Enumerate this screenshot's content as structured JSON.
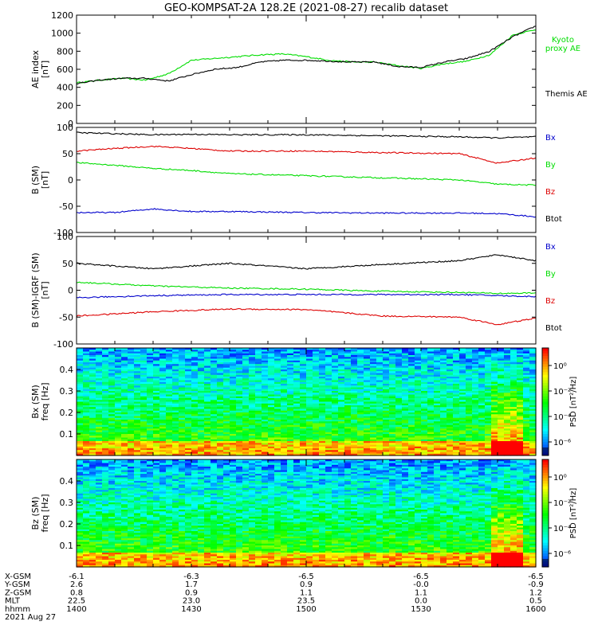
{
  "title": "GEO-KOMPSAT-2A 128.2E (2021-08-27) recalib dataset",
  "colors": {
    "green": "#00dd00",
    "black": "#000000",
    "blue": "#0000cc",
    "red": "#dd0000",
    "bg": "#ffffff"
  },
  "chart_data": [
    {
      "type": "line",
      "panel": "ae",
      "ylabel_top": "AE index",
      "ylabel_unit": "[nT]",
      "ylim": [
        0,
        1200
      ],
      "yticks": [
        "0",
        "200",
        "400",
        "600",
        "800",
        "1000",
        "1200"
      ],
      "x": [
        0,
        60
      ],
      "series": [
        {
          "name": "Kyoto proxy AE",
          "legend_lines": [
            "Kyoto",
            "proxy AE"
          ],
          "color": "green",
          "points": [
            [
              0,
              450
            ],
            [
              3,
              480
            ],
            [
              6,
              500
            ],
            [
              9,
              480
            ],
            [
              12,
              550
            ],
            [
              15,
              700
            ],
            [
              18,
              720
            ],
            [
              21,
              740
            ],
            [
              24,
              760
            ],
            [
              27,
              770
            ],
            [
              30,
              740
            ],
            [
              33,
              700
            ],
            [
              36,
              680
            ],
            [
              39,
              680
            ],
            [
              42,
              640
            ],
            [
              45,
              610
            ],
            [
              48,
              660
            ],
            [
              51,
              690
            ],
            [
              54,
              760
            ],
            [
              57,
              980
            ],
            [
              60,
              1040
            ]
          ]
        },
        {
          "name": "Themis AE",
          "legend_lines": [
            "Themis AE"
          ],
          "color": "black",
          "points": [
            [
              0,
              440
            ],
            [
              3,
              480
            ],
            [
              6,
              500
            ],
            [
              9,
              500
            ],
            [
              12,
              470
            ],
            [
              15,
              540
            ],
            [
              18,
              600
            ],
            [
              21,
              620
            ],
            [
              24,
              680
            ],
            [
              27,
              700
            ],
            [
              30,
              700
            ],
            [
              33,
              690
            ],
            [
              36,
              680
            ],
            [
              39,
              680
            ],
            [
              42,
              630
            ],
            [
              45,
              620
            ],
            [
              48,
              680
            ],
            [
              51,
              720
            ],
            [
              54,
              800
            ],
            [
              57,
              960
            ],
            [
              60,
              1080
            ]
          ]
        }
      ]
    },
    {
      "type": "line",
      "panel": "b",
      "ylabel_top": "B (SM)",
      "ylabel_unit": "[nT]",
      "ylim": [
        -100,
        100
      ],
      "yticks": [
        "-100",
        "-50",
        "0",
        "50",
        "100"
      ],
      "series": [
        {
          "name": "Bx",
          "color": "blue",
          "points": [
            [
              0,
              -62
            ],
            [
              5,
              -62
            ],
            [
              10,
              -55
            ],
            [
              15,
              -60
            ],
            [
              20,
              -60
            ],
            [
              30,
              -62
            ],
            [
              40,
              -63
            ],
            [
              50,
              -63
            ],
            [
              55,
              -64
            ],
            [
              60,
              -70
            ]
          ]
        },
        {
          "name": "By",
          "color": "green",
          "points": [
            [
              0,
              33
            ],
            [
              5,
              28
            ],
            [
              10,
              22
            ],
            [
              15,
              18
            ],
            [
              20,
              12
            ],
            [
              30,
              8
            ],
            [
              40,
              4
            ],
            [
              50,
              0
            ],
            [
              55,
              -8
            ],
            [
              60,
              -10
            ]
          ]
        },
        {
          "name": "Bz",
          "color": "red",
          "points": [
            [
              0,
              55
            ],
            [
              5,
              60
            ],
            [
              10,
              64
            ],
            [
              15,
              60
            ],
            [
              20,
              55
            ],
            [
              30,
              55
            ],
            [
              40,
              52
            ],
            [
              50,
              50
            ],
            [
              55,
              32
            ],
            [
              60,
              42
            ]
          ]
        },
        {
          "name": "Btot",
          "color": "black",
          "points": [
            [
              0,
              90
            ],
            [
              5,
              88
            ],
            [
              10,
              86
            ],
            [
              15,
              87
            ],
            [
              20,
              86
            ],
            [
              30,
              86
            ],
            [
              40,
              84
            ],
            [
              50,
              82
            ],
            [
              55,
              80
            ],
            [
              60,
              82
            ]
          ]
        }
      ]
    },
    {
      "type": "line",
      "panel": "db",
      "ylabel_top": "B (SM)-IGRF (SM)",
      "ylabel_unit": "[nT]",
      "ylim": [
        -100,
        100
      ],
      "yticks": [
        "-100",
        "-50",
        "0",
        "50",
        "100"
      ],
      "series": [
        {
          "name": "Bx",
          "color": "blue",
          "points": [
            [
              0,
              -14
            ],
            [
              10,
              -10
            ],
            [
              20,
              -8
            ],
            [
              30,
              -8
            ],
            [
              40,
              -8
            ],
            [
              50,
              -8
            ],
            [
              55,
              -10
            ],
            [
              60,
              -12
            ]
          ]
        },
        {
          "name": "By",
          "color": "green",
          "points": [
            [
              0,
              15
            ],
            [
              10,
              8
            ],
            [
              20,
              4
            ],
            [
              30,
              2
            ],
            [
              40,
              -2
            ],
            [
              50,
              -4
            ],
            [
              55,
              -6
            ],
            [
              60,
              -5
            ]
          ]
        },
        {
          "name": "Bz",
          "color": "red",
          "points": [
            [
              0,
              -48
            ],
            [
              10,
              -40
            ],
            [
              20,
              -35
            ],
            [
              30,
              -36
            ],
            [
              40,
              -48
            ],
            [
              50,
              -50
            ],
            [
              55,
              -64
            ],
            [
              60,
              -52
            ]
          ]
        },
        {
          "name": "Btot",
          "color": "black",
          "points": [
            [
              0,
              50
            ],
            [
              10,
              40
            ],
            [
              20,
              50
            ],
            [
              30,
              40
            ],
            [
              40,
              48
            ],
            [
              50,
              55
            ],
            [
              55,
              66
            ],
            [
              60,
              55
            ]
          ]
        }
      ]
    },
    {
      "type": "heatmap",
      "panel": "bx_spec",
      "ylabel_top": "Bx (SM)",
      "ylabel_unit": "freq [Hz]",
      "ylim": [
        0,
        0.5
      ],
      "yticks": [
        "0.1",
        "0.2",
        "0.3",
        "0.4"
      ],
      "colorbar_label": "PSD [nT²/Hz]",
      "colorbar_ticks": [
        "10⁰",
        "10⁻²",
        "10⁻⁴",
        "10⁻⁶"
      ]
    },
    {
      "type": "heatmap",
      "panel": "bz_spec",
      "ylabel_top": "Bz (SM)",
      "ylabel_unit": "freq [Hz]",
      "ylim": [
        0,
        0.5
      ],
      "yticks": [
        "0.1",
        "0.2",
        "0.3",
        "0.4"
      ],
      "colorbar_label": "PSD [nT²/Hz]",
      "colorbar_ticks": [
        "10⁰",
        "10⁻²",
        "10⁻⁴",
        "10⁻⁶"
      ]
    }
  ],
  "ephemeris": {
    "rows": [
      {
        "label": "X-GSM",
        "values": [
          "-6.1",
          "-6.3",
          "-6.5",
          "-6.5",
          "-6.5"
        ]
      },
      {
        "label": "Y-GSM",
        "values": [
          "2.6",
          "1.7",
          "0.9",
          "-0.0",
          "-0.9"
        ]
      },
      {
        "label": "Z-GSM",
        "values": [
          "0.8",
          "0.9",
          "1.1",
          "1.1",
          "1.2"
        ]
      },
      {
        "label": "MLT",
        "values": [
          "22.5",
          "23.0",
          "23.5",
          "0.0",
          "0.5"
        ]
      },
      {
        "label": "hhmm",
        "values": [
          "1400",
          "1430",
          "1500",
          "1530",
          "1600"
        ]
      }
    ],
    "date": "2021 Aug 27"
  }
}
